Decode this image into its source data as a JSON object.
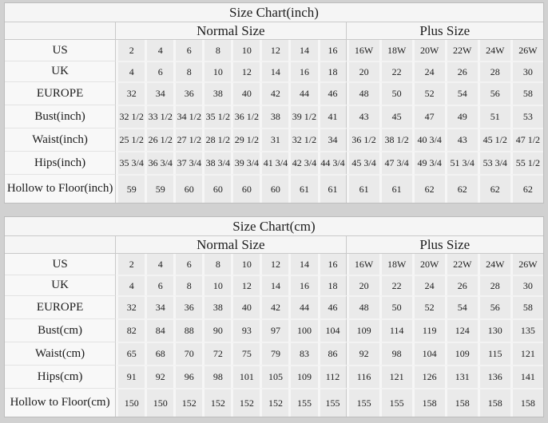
{
  "page_background": "#d1d1d1",
  "chart_data": [
    {
      "type": "table",
      "title": "Size Chart(inch)",
      "column_groups": [
        {
          "label": "Normal Size",
          "span": 8
        },
        {
          "label": "Plus Size",
          "span": 6
        }
      ],
      "rows": [
        {
          "label": "US",
          "values": [
            "2",
            "4",
            "6",
            "8",
            "10",
            "12",
            "14",
            "16",
            "16W",
            "18W",
            "20W",
            "22W",
            "24W",
            "26W"
          ]
        },
        {
          "label": "UK",
          "values": [
            "4",
            "6",
            "8",
            "10",
            "12",
            "14",
            "16",
            "18",
            "20",
            "22",
            "24",
            "26",
            "28",
            "30"
          ]
        },
        {
          "label": "EUROPE",
          "values": [
            "32",
            "34",
            "36",
            "38",
            "40",
            "42",
            "44",
            "46",
            "48",
            "50",
            "52",
            "54",
            "56",
            "58"
          ]
        },
        {
          "label": "Bust(inch)",
          "values": [
            "32 1/2",
            "33 1/2",
            "34 1/2",
            "35 1/2",
            "36 1/2",
            "38",
            "39 1/2",
            "41",
            "43",
            "45",
            "47",
            "49",
            "51",
            "53"
          ]
        },
        {
          "label": "Waist(inch)",
          "values": [
            "25 1/2",
            "26 1/2",
            "27 1/2",
            "28 1/2",
            "29 1/2",
            "31",
            "32 1/2",
            "34",
            "36 1/2",
            "38 1/2",
            "40 3/4",
            "43",
            "45 1/2",
            "47 1/2"
          ]
        },
        {
          "label": "Hips(inch)",
          "values": [
            "35 3/4",
            "36 3/4",
            "37 3/4",
            "38 3/4",
            "39 3/4",
            "41 3/4",
            "42 3/4",
            "44 3/4",
            "45 3/4",
            "47 3/4",
            "49 3/4",
            "51 3/4",
            "53 3/4",
            "55 1/2"
          ]
        },
        {
          "label": "Hollow to Floor(inch)",
          "values": [
            "59",
            "59",
            "60",
            "60",
            "60",
            "60",
            "61",
            "61",
            "61",
            "61",
            "62",
            "62",
            "62",
            "62"
          ]
        }
      ]
    },
    {
      "type": "table",
      "title": "Size Chart(cm)",
      "column_groups": [
        {
          "label": "Normal Size",
          "span": 8
        },
        {
          "label": "Plus Size",
          "span": 6
        }
      ],
      "rows": [
        {
          "label": "US",
          "values": [
            "2",
            "4",
            "6",
            "8",
            "10",
            "12",
            "14",
            "16",
            "16W",
            "18W",
            "20W",
            "22W",
            "24W",
            "26W"
          ]
        },
        {
          "label": "UK",
          "values": [
            "4",
            "6",
            "8",
            "10",
            "12",
            "14",
            "16",
            "18",
            "20",
            "22",
            "24",
            "26",
            "28",
            "30"
          ]
        },
        {
          "label": "EUROPE",
          "values": [
            "32",
            "34",
            "36",
            "38",
            "40",
            "42",
            "44",
            "46",
            "48",
            "50",
            "52",
            "54",
            "56",
            "58"
          ]
        },
        {
          "label": "Bust(cm)",
          "values": [
            "82",
            "84",
            "88",
            "90",
            "93",
            "97",
            "100",
            "104",
            "109",
            "114",
            "119",
            "124",
            "130",
            "135"
          ]
        },
        {
          "label": "Waist(cm)",
          "values": [
            "65",
            "68",
            "70",
            "72",
            "75",
            "79",
            "83",
            "86",
            "92",
            "98",
            "104",
            "109",
            "115",
            "121"
          ]
        },
        {
          "label": "Hips(cm)",
          "values": [
            "91",
            "92",
            "96",
            "98",
            "101",
            "105",
            "109",
            "112",
            "116",
            "121",
            "126",
            "131",
            "136",
            "141"
          ]
        },
        {
          "label": "Hollow to Floor(cm)",
          "values": [
            "150",
            "150",
            "152",
            "152",
            "152",
            "152",
            "155",
            "155",
            "155",
            "155",
            "158",
            "158",
            "158",
            "158"
          ]
        }
      ]
    }
  ]
}
